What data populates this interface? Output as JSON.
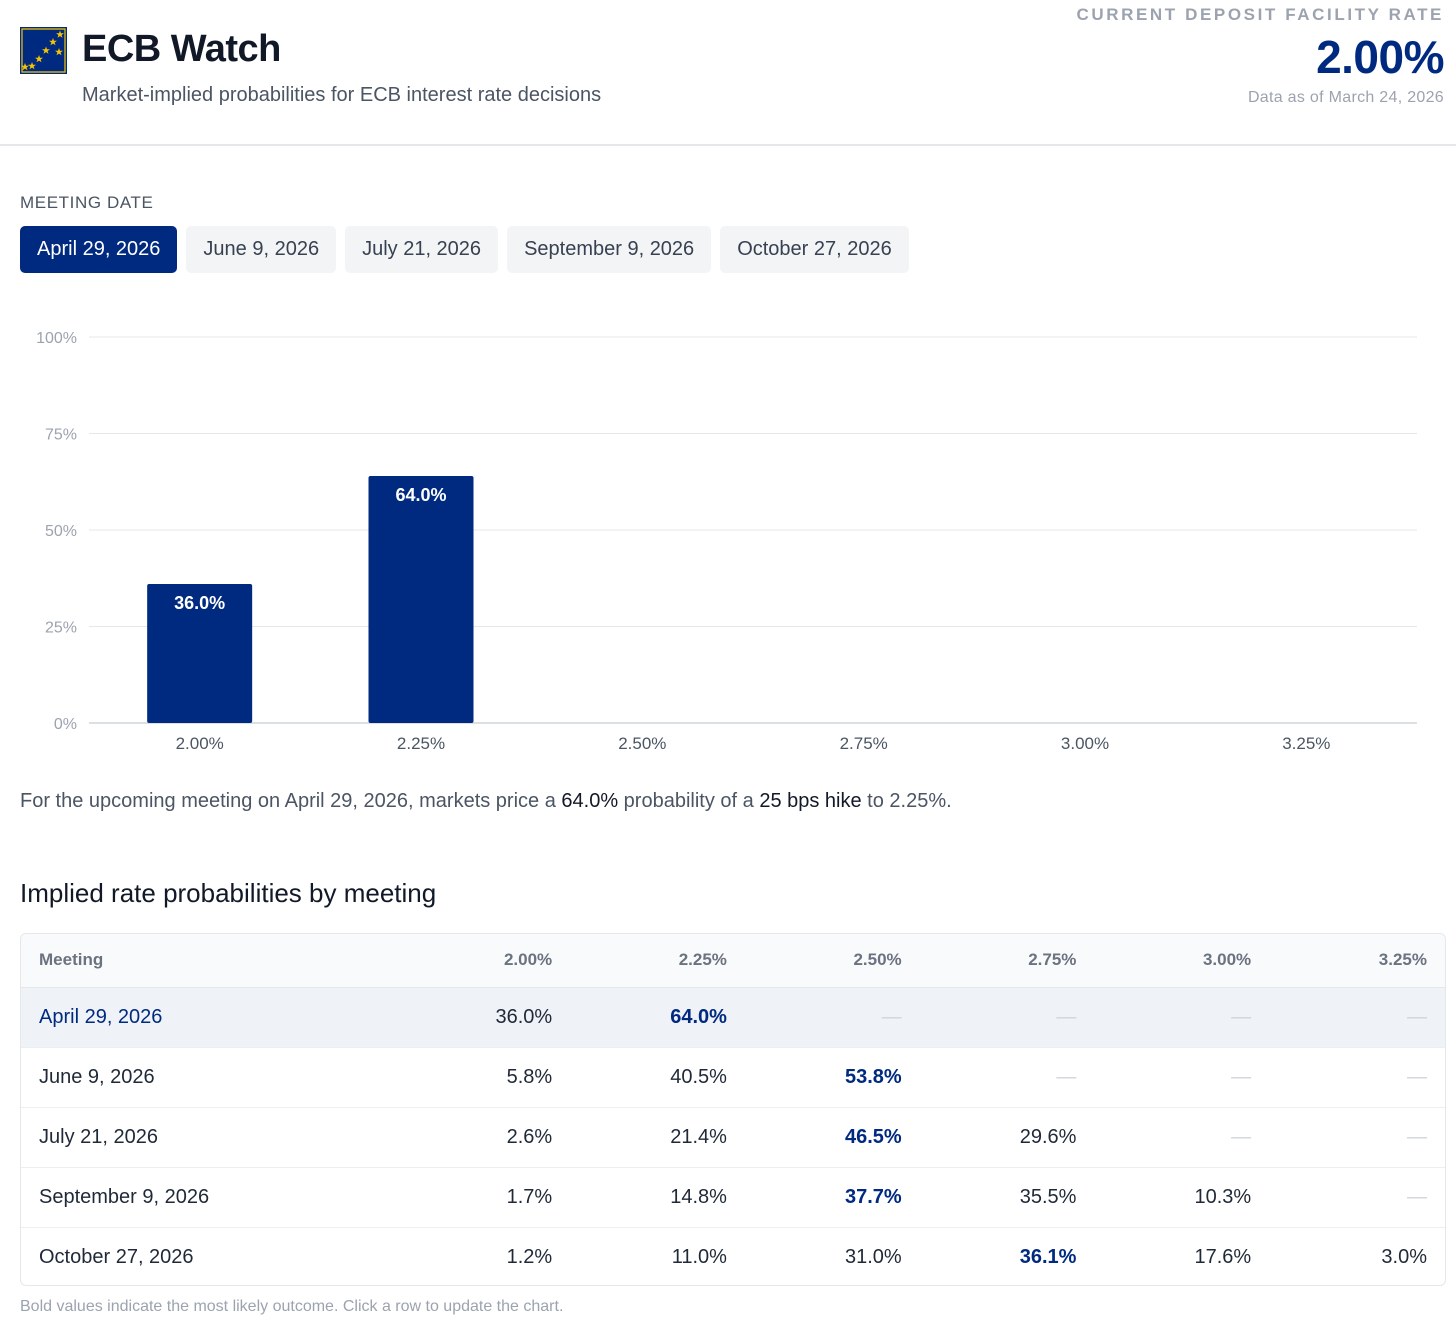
{
  "header": {
    "title": "ECB Watch",
    "subtitle": "Market-implied probabilities for ECB interest rate decisions",
    "rate_caption": "CURRENT DEPOSIT FACILITY RATE",
    "rate_value": "2.00%",
    "as_of": "Data as of March 24, 2026"
  },
  "colors": {
    "brand": "#002a80",
    "logo_star": "#f5c400"
  },
  "icons": {
    "logo": "eu-flag-icon"
  },
  "meeting_selector": {
    "label": "MEETING DATE",
    "tabs": [
      {
        "label": "April 29, 2026",
        "active": true
      },
      {
        "label": "June 9, 2026",
        "active": false
      },
      {
        "label": "July 21, 2026",
        "active": false
      },
      {
        "label": "September 9, 2026",
        "active": false
      },
      {
        "label": "October 27, 2026",
        "active": false
      }
    ]
  },
  "chart_data": {
    "type": "bar",
    "categories": [
      "2.00%",
      "2.25%",
      "2.50%",
      "2.75%",
      "3.00%",
      "3.25%"
    ],
    "values": [
      36.0,
      64.0,
      0,
      0,
      0,
      0
    ],
    "data_labels": [
      "36.0%",
      "64.0%",
      "",
      "",
      "",
      ""
    ],
    "yticks": [
      "0%",
      "25%",
      "50%",
      "75%",
      "100%"
    ],
    "ylim": [
      0,
      100
    ],
    "grid": true,
    "color": "#002a80"
  },
  "summary": {
    "prefix": "For the upcoming meeting on April 29, 2026, markets price a ",
    "probability": "64.0%",
    "middle": " probability of a ",
    "action": "25 bps hike",
    "suffix": " to 2.25%."
  },
  "table": {
    "title": "Implied rate probabilities by meeting",
    "headers": [
      "Meeting",
      "2.00%",
      "2.25%",
      "2.50%",
      "2.75%",
      "3.00%",
      "3.25%"
    ],
    "rows": [
      {
        "meeting": "April 29, 2026",
        "values": [
          "36.0%",
          "64.0%",
          "—",
          "—",
          "—",
          "—"
        ],
        "max_index": 1,
        "selected": true
      },
      {
        "meeting": "June 9, 2026",
        "values": [
          "5.8%",
          "40.5%",
          "53.8%",
          "—",
          "—",
          "—"
        ],
        "max_index": 2,
        "selected": false
      },
      {
        "meeting": "July 21, 2026",
        "values": [
          "2.6%",
          "21.4%",
          "46.5%",
          "29.6%",
          "—",
          "—"
        ],
        "max_index": 2,
        "selected": false
      },
      {
        "meeting": "September 9, 2026",
        "values": [
          "1.7%",
          "14.8%",
          "37.7%",
          "35.5%",
          "10.3%",
          "—"
        ],
        "max_index": 2,
        "selected": false
      },
      {
        "meeting": "October 27, 2026",
        "values": [
          "1.2%",
          "11.0%",
          "31.0%",
          "36.1%",
          "17.6%",
          "3.0%"
        ],
        "max_index": 3,
        "selected": false
      }
    ],
    "footnote": "Bold values indicate the most likely outcome. Click a row to update the chart."
  }
}
